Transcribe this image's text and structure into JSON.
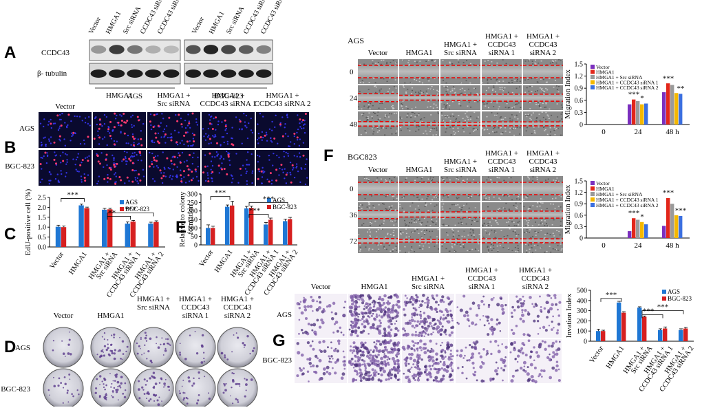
{
  "panels": {
    "A": {
      "letter": "A",
      "lanes": [
        "Vector",
        "HMGA1",
        "Src siRNA",
        "CCDC43 siRNA 1",
        "CCDC43 siRNA 2",
        "Vector",
        "HMGA1",
        "Src siRNA",
        "CCDC43 siRNA 1",
        "CCDC43 siRNA 2"
      ],
      "rows": [
        "CCDC43",
        "β- tubulin"
      ],
      "groups": [
        "AGS",
        "BGC-823"
      ],
      "ccdc43_intensity_ags": [
        0.45,
        0.85,
        0.6,
        0.35,
        0.3
      ],
      "ccdc43_intensity_bgc": [
        0.75,
        0.95,
        0.8,
        0.7,
        0.55
      ]
    },
    "B": {
      "letter": "B",
      "columns": [
        "Vector",
        "HMGA1",
        "HMGA1 + Src siRNA",
        "HMGA1 + CCDC43 siRNA 1",
        "HMGA1 + CCDC43 siRNA 2"
      ],
      "rows": [
        "AGS",
        "BGC-823"
      ]
    },
    "D": {
      "letter": "D",
      "columns": [
        "Vector",
        "HMGA1",
        "HMGA1 + Src siRNA",
        "HMGA1 + CCDC43 siRNA 1",
        "HMGA1 + CCDC43 siRNA 2"
      ],
      "rows": [
        "AGS",
        "BGC-823"
      ]
    },
    "F_top": {
      "letter": "",
      "cell_line": "AGS",
      "columns": [
        "Vector",
        "HMGA1",
        "HMGA1 + Src siRNA",
        "HMGA1 + CCDC43 siRNA 1",
        "HMGA1 + CCDC43 siRNA 2"
      ],
      "rows": [
        "0",
        "24",
        "48 h"
      ]
    },
    "F_bottom": {
      "letter": "F",
      "cell_line": "BGC823",
      "columns": [
        "Vector",
        "HMGA1",
        "HMGA1 + Src siRNA",
        "HMGA1 + CCDC43 siRNA 1",
        "HMGA1 + CCDC43 siRNA 2"
      ],
      "rows": [
        "0",
        "36",
        "72 h"
      ]
    },
    "G": {
      "letter": "G",
      "columns": [
        "Vector",
        "HMGA1",
        "HMGA1 + Src siRNA",
        "HMGA1 + CCDC43 siRNA 1",
        "HMGA1 + CCDC43 siRNA 2"
      ],
      "rows": [
        "AGS",
        "BGC-823"
      ]
    }
  },
  "colors": {
    "ags": "#1f77d4",
    "bgc": "#d62020",
    "purple": "#7b2fbe",
    "red": "#e2261a",
    "gray": "#9a9a9a",
    "yellow": "#f5b800",
    "blue": "#3b6fe0"
  },
  "chart_data": [
    {
      "id": "C",
      "type": "bar",
      "letter": "C",
      "ylabel": "EdU-positive cell (%)",
      "categories": [
        "Vector",
        "HMGA1",
        "HMGA1 + Src siRNA",
        "HMGA1 + CCDC43 siRNA 1",
        "HMGA1 + CCDC43 siRNA 2"
      ],
      "series": [
        {
          "name": "AGS",
          "values": [
            1.02,
            2.1,
            1.88,
            1.18,
            1.18
          ],
          "errors": [
            0.08,
            0.06,
            0.07,
            0.08,
            0.07
          ],
          "color": "#1f77d4"
        },
        {
          "name": "BGC-823",
          "values": [
            1.0,
            1.96,
            1.9,
            1.28,
            1.26
          ],
          "errors": [
            0.06,
            0.05,
            0.06,
            0.06,
            0.06
          ],
          "color": "#d62020"
        }
      ],
      "yticks": [
        "0.0",
        "0.5",
        "1.0",
        "1.5",
        "2.0",
        "2.5"
      ],
      "ylim": [
        0,
        2.5
      ],
      "legend": "top-right",
      "sig": [
        "***",
        "**",
        "***"
      ]
    },
    {
      "id": "E",
      "type": "bar",
      "letter": "E",
      "ylabel": "Relative to colony formation",
      "categories": [
        "Vector",
        "HMGA1",
        "HMGA1 + Src siRNA",
        "HMGA1 + CCDC43 siRNA 1",
        "HMGA1 + CCDC43 siRNA 2"
      ],
      "series": [
        {
          "name": "AGS",
          "values": [
            100,
            225,
            215,
            120,
            140
          ],
          "errors": [
            18,
            10,
            12,
            12,
            12
          ],
          "color": "#1f77d4"
        },
        {
          "name": "BGC-823",
          "values": [
            100,
            232,
            218,
            148,
            152
          ],
          "errors": [
            10,
            25,
            10,
            10,
            10
          ],
          "color": "#d62020"
        }
      ],
      "yticks": [
        "0",
        "50",
        "100",
        "150",
        "200",
        "250",
        "300"
      ],
      "ylim": [
        0,
        300
      ],
      "legend": "top-right",
      "sig": [
        "***",
        "***",
        "***"
      ]
    },
    {
      "id": "F1",
      "type": "bar",
      "ylabel": "Migration Index",
      "categories": [
        "0",
        "24",
        "48 h"
      ],
      "series": [
        {
          "name": "Vector",
          "values": [
            0,
            0.5,
            0.8
          ],
          "color": "#7b2fbe"
        },
        {
          "name": "HMGA1",
          "values": [
            0,
            0.62,
            1.02
          ],
          "color": "#e2261a"
        },
        {
          "name": "HMGA1 + Src siRNA",
          "values": [
            0,
            0.58,
            0.98
          ],
          "color": "#9a9a9a"
        },
        {
          "name": "HMGA1 + CCDC43 siRNA 1",
          "values": [
            0,
            0.5,
            0.78
          ],
          "color": "#f5b800"
        },
        {
          "name": "HMGA1 + CCDC43 siRNA 2",
          "values": [
            0,
            0.52,
            0.76
          ],
          "color": "#3b6fe0"
        }
      ],
      "yticks": [
        "0",
        "0.3",
        "0.6",
        "0.9",
        "1.2",
        "1.5"
      ],
      "ylim": [
        0,
        1.5
      ],
      "legend": "top-left",
      "sig": [
        "***",
        "*",
        "***",
        "**"
      ]
    },
    {
      "id": "F2",
      "type": "bar",
      "ylabel": "Migration Index",
      "categories": [
        "0",
        "24",
        "48 h"
      ],
      "series": [
        {
          "name": "Vector",
          "values": [
            0,
            0.18,
            0.32
          ],
          "color": "#7b2fbe"
        },
        {
          "name": "HMGA1",
          "values": [
            0,
            0.52,
            1.05
          ],
          "color": "#e2261a"
        },
        {
          "name": "HMGA1 + Src siRNA",
          "values": [
            0,
            0.48,
            0.9
          ],
          "color": "#9a9a9a"
        },
        {
          "name": "HMGA1 + CCDC43 siRNA 1",
          "values": [
            0,
            0.42,
            0.6
          ],
          "color": "#f5b800"
        },
        {
          "name": "HMGA1 + CCDC43 siRNA 2",
          "values": [
            0,
            0.36,
            0.58
          ],
          "color": "#3b6fe0"
        }
      ],
      "yticks": [
        "0",
        "0.3",
        "0.6",
        "0.9",
        "1.2",
        "1.5"
      ],
      "ylim": [
        0,
        1.5
      ],
      "legend": "top-left",
      "sig": [
        "***",
        "*",
        "***",
        "***"
      ]
    },
    {
      "id": "G",
      "type": "bar",
      "ylabel": "Invation Index",
      "categories": [
        "Vector",
        "HMGA1",
        "HMGA1 + Src siRNA",
        "HMGA1 + CCDC43 siRNA 1",
        "HMGA1 + CCDC43 siRNA 2"
      ],
      "series": [
        {
          "name": "AGS",
          "values": [
            100,
            380,
            330,
            110,
            110
          ],
          "errors": [
            18,
            12,
            8,
            12,
            12
          ],
          "color": "#1f77d4"
        },
        {
          "name": "BGC-823",
          "values": [
            100,
            280,
            240,
            125,
            125
          ],
          "errors": [
            8,
            10,
            8,
            15,
            10
          ],
          "color": "#d62020"
        }
      ],
      "yticks": [
        "0",
        "100",
        "200",
        "300",
        "400",
        "500"
      ],
      "ylim": [
        0,
        500
      ],
      "legend": "top-right",
      "sig": [
        "***",
        "***",
        "***"
      ]
    }
  ]
}
